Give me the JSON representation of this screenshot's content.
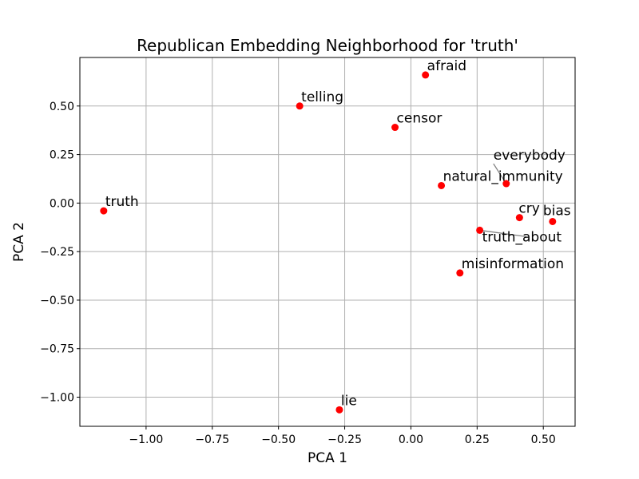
{
  "chart_data": {
    "type": "scatter",
    "title": "Republican Embedding Neighborhood for 'truth'",
    "xlabel": "PCA 1",
    "ylabel": "PCA 2",
    "xlim": [
      -1.25,
      0.62
    ],
    "ylim": [
      -1.15,
      0.75
    ],
    "xticks": [
      -1.0,
      -0.75,
      -0.5,
      -0.25,
      0.0,
      0.25,
      0.5
    ],
    "xtick_labels": [
      "−1.00",
      "−0.75",
      "−0.50",
      "−0.25",
      "0.00",
      "0.25",
      "0.50"
    ],
    "yticks": [
      0.5,
      0.25,
      0.0,
      -0.25,
      -0.5,
      -0.75,
      -1.0
    ],
    "ytick_labels": [
      "0.50",
      "0.25",
      "0.00",
      "−0.25",
      "−0.50",
      "−0.75",
      "−1.00"
    ],
    "grid": true,
    "point_color": "#ff0000",
    "grid_color": "#b0b0b0",
    "connector_color": "#808080",
    "points": [
      {
        "label": "truth",
        "x": -1.16,
        "y": -0.04
      },
      {
        "label": "telling",
        "x": -0.42,
        "y": 0.5
      },
      {
        "label": "afraid",
        "x": 0.055,
        "y": 0.66
      },
      {
        "label": "censor",
        "x": -0.06,
        "y": 0.39
      },
      {
        "label": "natural_immunity",
        "x": 0.115,
        "y": 0.09
      },
      {
        "label": "everybody",
        "x": 0.36,
        "y": 0.1
      },
      {
        "label": "cry",
        "x": 0.41,
        "y": -0.075
      },
      {
        "label": "bias",
        "x": 0.535,
        "y": -0.095
      },
      {
        "label": "truth_about",
        "x": 0.26,
        "y": -0.14
      },
      {
        "label": "misinformation",
        "x": 0.185,
        "y": -0.36
      },
      {
        "label": "lie",
        "x": -0.27,
        "y": -1.065
      }
    ]
  }
}
